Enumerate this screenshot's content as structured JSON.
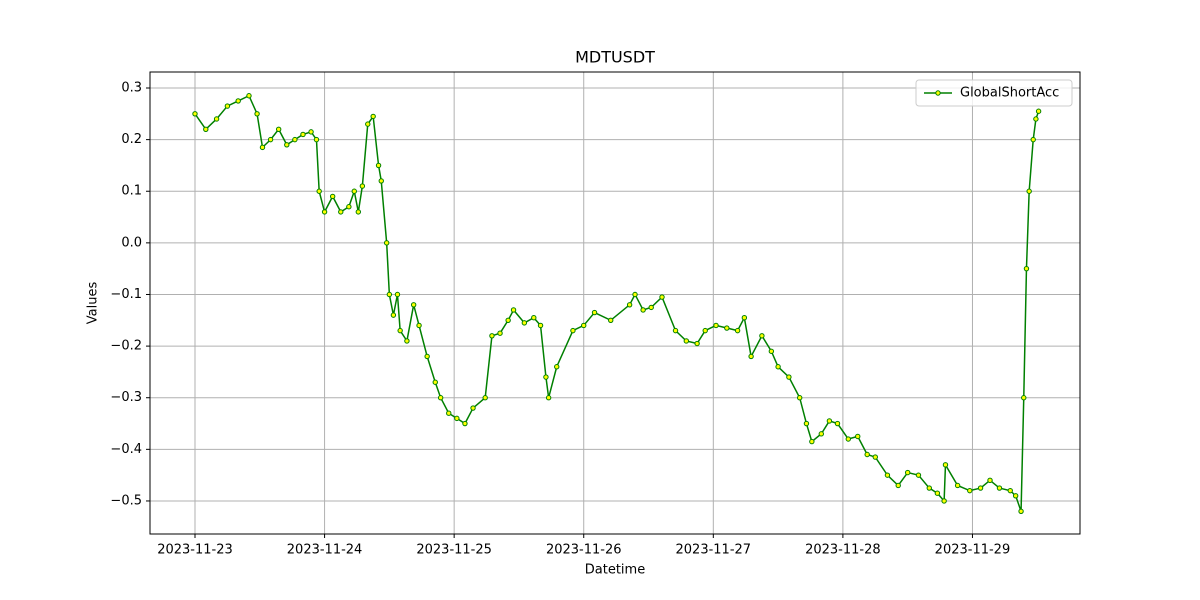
{
  "chart_data": {
    "type": "line",
    "title": "MDTUSDT",
    "x_label": "Datetime",
    "y_label": "Values",
    "x": [
      "2023-11-23 00:00",
      "2023-11-23 02:00",
      "2023-11-23 04:00",
      "2023-11-23 06:00",
      "2023-11-23 08:00",
      "2023-11-23 10:00",
      "2023-11-23 11:30",
      "2023-11-23 12:30",
      "2023-11-23 14:00",
      "2023-11-23 15:30",
      "2023-11-23 17:00",
      "2023-11-23 18:30",
      "2023-11-23 20:00",
      "2023-11-23 21:30",
      "2023-11-23 22:30",
      "2023-11-23 23:00",
      "2023-11-24 00:00",
      "2023-11-24 01:30",
      "2023-11-24 03:00",
      "2023-11-24 04:30",
      "2023-11-24 05:30",
      "2023-11-24 06:15",
      "2023-11-24 07:00",
      "2023-11-24 08:00",
      "2023-11-24 09:00",
      "2023-11-24 10:00",
      "2023-11-24 10:30",
      "2023-11-24 11:30",
      "2023-11-24 12:00",
      "2023-11-24 12:45",
      "2023-11-24 13:30",
      "2023-11-24 14:00",
      "2023-11-24 15:15",
      "2023-11-24 16:30",
      "2023-11-24 17:30",
      "2023-11-24 19:00",
      "2023-11-24 20:30",
      "2023-11-24 21:30",
      "2023-11-24 23:00",
      "2023-11-25 00:30",
      "2023-11-25 02:00",
      "2023-11-25 03:30",
      "2023-11-25 05:45",
      "2023-11-25 07:00",
      "2023-11-25 08:30",
      "2023-11-25 10:00",
      "2023-11-25 11:00",
      "2023-11-25 13:00",
      "2023-11-25 14:45",
      "2023-11-25 16:00",
      "2023-11-25 17:00",
      "2023-11-25 17:30",
      "2023-11-25 19:00",
      "2023-11-25 22:00",
      "2023-11-26 00:00",
      "2023-11-26 02:00",
      "2023-11-26 05:00",
      "2023-11-26 08:30",
      "2023-11-26 09:30",
      "2023-11-26 11:00",
      "2023-11-26 12:30",
      "2023-11-26 14:30",
      "2023-11-26 17:00",
      "2023-11-26 19:00",
      "2023-11-26 21:00",
      "2023-11-26 22:30",
      "2023-11-27 00:30",
      "2023-11-27 02:30",
      "2023-11-27 04:30",
      "2023-11-27 05:45",
      "2023-11-27 07:00",
      "2023-11-27 09:00",
      "2023-11-27 10:45",
      "2023-11-27 12:00",
      "2023-11-27 14:00",
      "2023-11-27 16:00",
      "2023-11-27 17:15",
      "2023-11-27 18:15",
      "2023-11-27 20:00",
      "2023-11-27 21:30",
      "2023-11-27 23:00",
      "2023-11-28 01:00",
      "2023-11-28 02:45",
      "2023-11-28 04:30",
      "2023-11-28 06:00",
      "2023-11-28 08:15",
      "2023-11-28 10:15",
      "2023-11-28 12:00",
      "2023-11-28 14:00",
      "2023-11-28 16:00",
      "2023-11-28 17:30",
      "2023-11-28 18:45",
      "2023-11-28 19:00",
      "2023-11-28 21:15",
      "2023-11-28 23:30",
      "2023-11-29 01:30",
      "2023-11-29 03:15",
      "2023-11-29 05:00",
      "2023-11-29 07:00",
      "2023-11-29 08:00",
      "2023-11-29 09:00",
      "2023-11-29 09:30",
      "2023-11-29 10:00",
      "2023-11-29 10:30",
      "2023-11-29 11:15",
      "2023-11-29 11:45",
      "2023-11-29 12:15"
    ],
    "series": [
      {
        "name": "GlobalShortAcc",
        "color": "#008000",
        "marker_color": "#ffff00",
        "values": [
          0.25,
          0.22,
          0.24,
          0.265,
          0.275,
          0.285,
          0.25,
          0.185,
          0.2,
          0.22,
          0.19,
          0.2,
          0.21,
          0.215,
          0.2,
          0.1,
          0.06,
          0.09,
          0.06,
          0.07,
          0.1,
          0.06,
          0.11,
          0.23,
          0.245,
          0.15,
          0.12,
          0.0,
          -0.1,
          -0.14,
          -0.1,
          -0.17,
          -0.19,
          -0.12,
          -0.16,
          -0.22,
          -0.27,
          -0.3,
          -0.33,
          -0.34,
          -0.35,
          -0.32,
          -0.3,
          -0.18,
          -0.175,
          -0.15,
          -0.13,
          -0.155,
          -0.145,
          -0.16,
          -0.26,
          -0.3,
          -0.24,
          -0.17,
          -0.16,
          -0.135,
          -0.15,
          -0.12,
          -0.1,
          -0.13,
          -0.125,
          -0.105,
          -0.17,
          -0.19,
          -0.195,
          -0.17,
          -0.16,
          -0.165,
          -0.17,
          -0.145,
          -0.22,
          -0.18,
          -0.21,
          -0.24,
          -0.26,
          -0.3,
          -0.35,
          -0.385,
          -0.37,
          -0.345,
          -0.35,
          -0.38,
          -0.375,
          -0.41,
          -0.415,
          -0.45,
          -0.47,
          -0.445,
          -0.45,
          -0.475,
          -0.485,
          -0.5,
          -0.43,
          -0.47,
          -0.48,
          -0.475,
          -0.46,
          -0.475,
          -0.48,
          -0.49,
          -0.52,
          -0.3,
          -0.05,
          0.1,
          0.2,
          0.24,
          0.255
        ]
      }
    ],
    "xlim": [
      "2023-11-22 15:40",
      "2023-11-29 19:55"
    ],
    "xticks": [
      "2023-11-23",
      "2023-11-24",
      "2023-11-25",
      "2023-11-26",
      "2023-11-27",
      "2023-11-28",
      "2023-11-29"
    ],
    "ylim": [
      -0.564,
      0.331
    ],
    "yticks": [
      0.3,
      0.2,
      0.1,
      {
        "value": 0,
        "label": "0.0"
      },
      {
        "value": -0.1,
        "label": "−0.1"
      },
      {
        "value": -0.2,
        "label": "−0.2"
      },
      {
        "value": -0.3,
        "label": "−0.3"
      },
      {
        "value": -0.4,
        "label": "−0.4"
      },
      {
        "value": -0.5,
        "label": "−0.5"
      }
    ],
    "grid": true,
    "legend_position": "upper-right"
  }
}
